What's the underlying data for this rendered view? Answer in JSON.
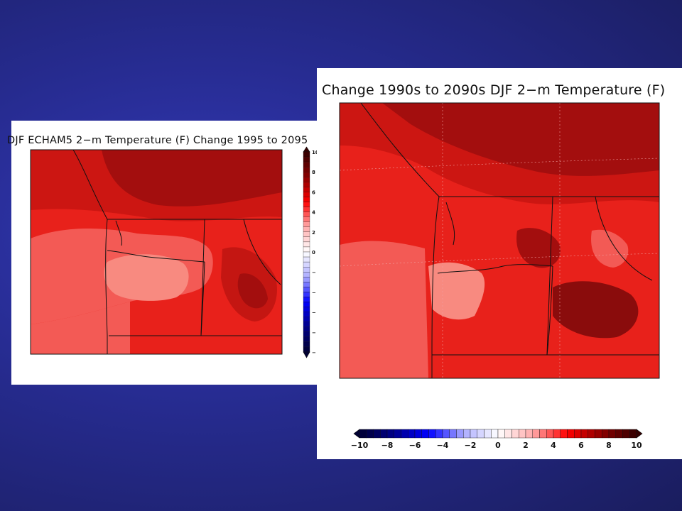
{
  "panels": [
    {
      "title": "DJF ECHAM5 2−m Temperature (F) Change 1995 to 2095",
      "colorbar": {
        "orientation": "vertical",
        "labels": [
          "10",
          "8",
          "6",
          "4",
          "2",
          "0",
          "−",
          "−",
          "−",
          "−",
          "−"
        ]
      }
    },
    {
      "title": "Change 1990s to 2090s DJF 2−m Temperature (F)",
      "colorbar": {
        "orientation": "horizontal",
        "labels": [
          "−10",
          "−8",
          "−6",
          "−4",
          "−2",
          "0",
          "2",
          "4",
          "6",
          "8",
          "10"
        ]
      }
    }
  ],
  "colorscale": {
    "min": -10,
    "max": 10,
    "colors": [
      "#000033",
      "#00008b",
      "#0000ff",
      "#aaaaff",
      "#ffffff",
      "#ffaaaa",
      "#ff0000",
      "#8b0000",
      "#330000"
    ]
  }
}
